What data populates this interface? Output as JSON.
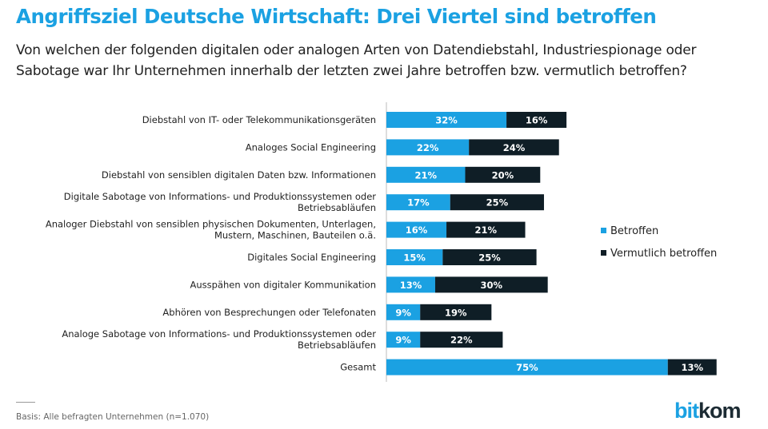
{
  "title": "Angriffsziel Deutsche Wirtschaft: Drei Viertel sind betroffen",
  "subtitle": "Von welchen der folgenden digitalen oder analogen Arten von Datendiebstahl, Industriespionage oder Sabotage war Ihr Unternehmen innerhalb der letzten zwei Jahre betroffen bzw. vermutlich betroffen?",
  "footer": {
    "basis": "Basis: Alle befragten Unternehmen (n=1.070)",
    "logo": "bitkom"
  },
  "colors": {
    "betroffen": "#1ba1e2",
    "vermutlich": "#0f1e26"
  },
  "chart_data": {
    "type": "bar",
    "orientation": "horizontal",
    "stacked": true,
    "legend_placement": "right",
    "unit": "%",
    "categories": [
      [
        "Diebstahl von IT- oder Telekommunikationsgeräten"
      ],
      [
        "Analoges Social Engineering"
      ],
      [
        "Diebstahl von sensiblen digitalen Daten bzw. Informationen"
      ],
      [
        "Digitale Sabotage von Informations- und Produktionssystemen oder",
        "Betriebsabläufen"
      ],
      [
        "Analoger Diebstahl von sensiblen physischen Dokumenten, Unterlagen,",
        "Mustern, Maschinen, Bauteilen o.ä."
      ],
      [
        "Digitales Social Engineering"
      ],
      [
        "Ausspähen von digitaler Kommunikation"
      ],
      [
        "Abhören von Besprechungen oder Telefonaten"
      ],
      [
        "Analoge Sabotage von Informations- und Produktionssystemen oder",
        "Betriebsabläufen"
      ],
      [
        "Gesamt"
      ]
    ],
    "series": [
      {
        "name": "Betroffen",
        "values": [
          32,
          22,
          21,
          17,
          16,
          15,
          13,
          9,
          9,
          75
        ]
      },
      {
        "name": "Vermutlich betroffen",
        "values": [
          16,
          24,
          20,
          25,
          21,
          25,
          30,
          19,
          22,
          13
        ]
      }
    ]
  }
}
